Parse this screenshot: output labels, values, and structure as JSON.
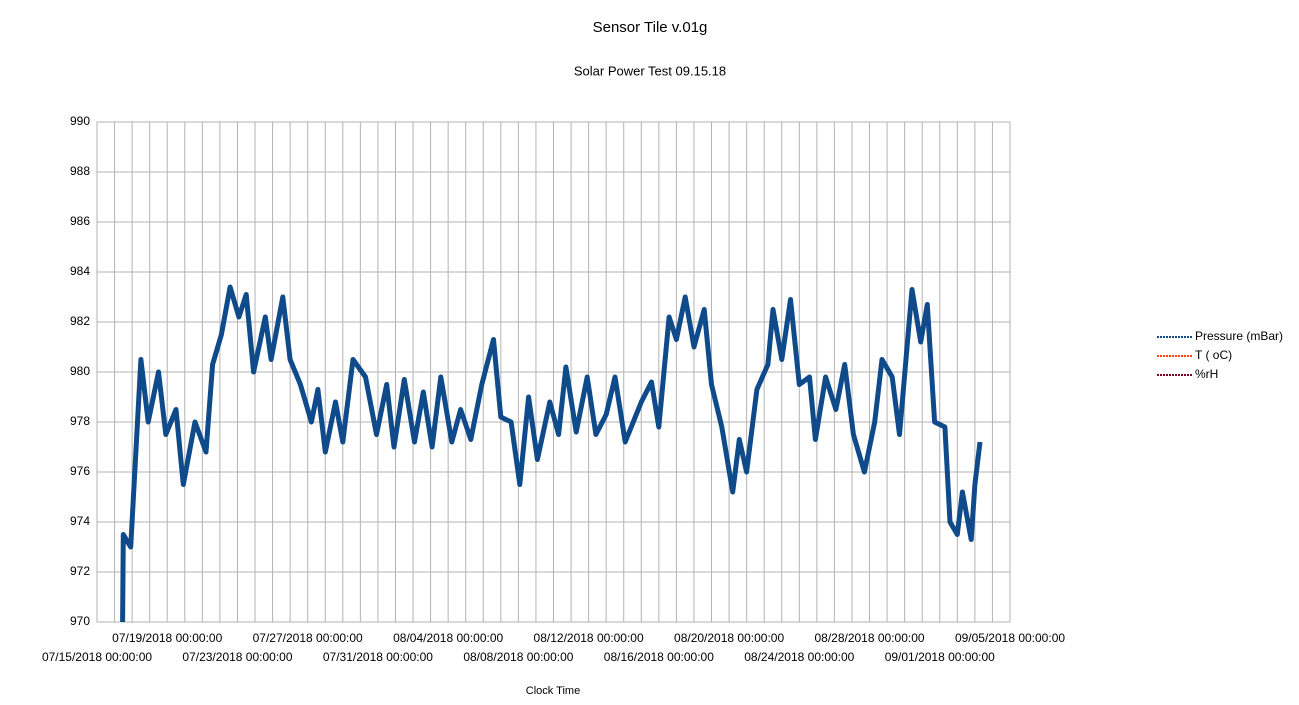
{
  "chart_data": {
    "type": "line",
    "title": "Sensor Tile v.01g",
    "subtitle": "Solar Power Test 09.15.18",
    "x_label": "Clock Time",
    "xlim": [
      "07/15/2018 00:00:00",
      "09/05/2018 00:00:00"
    ],
    "xticks": [
      "07/15/2018 00:00:00",
      "07/19/2018 00:00:00",
      "07/23/2018 00:00:00",
      "07/27/2018 00:00:00",
      "07/31/2018 00:00:00",
      "08/04/2018 00:00:00",
      "08/08/2018 00:00:00",
      "08/12/2018 00:00:00",
      "08/16/2018 00:00:00",
      "08/20/2018 00:00:00",
      "08/24/2018 00:00:00",
      "08/28/2018 00:00:00",
      "09/01/2018 00:00:00",
      "09/05/2018 00:00:00"
    ],
    "x_minor_per_major": 3,
    "ylim": [
      970,
      990
    ],
    "yticks": [
      970,
      972,
      974,
      976,
      978,
      980,
      982,
      984,
      986,
      988,
      990
    ],
    "grid": true,
    "legend": "right",
    "x": [
      "07/16/2018 11:00:00",
      "07/16/2018 12:00:00",
      "07/16/2018 22:00:00",
      "07/17/2018 12:00:00",
      "07/17/2018 22:00:00",
      "07/18/2018 12:00:00",
      "07/18/2018 22:00:00",
      "07/19/2018 12:00:00",
      "07/19/2018 22:00:00",
      "07/20/2018 14:00:00",
      "07/21/2018 05:00:00",
      "07/21/2018 14:00:00",
      "07/22/2018 02:00:00",
      "07/22/2018 14:00:00",
      "07/23/2018 02:00:00",
      "07/23/2018 12:00:00",
      "07/23/2018 22:00:00",
      "07/24/2018 14:00:00",
      "07/24/2018 22:00:00",
      "07/25/2018 14:00:00",
      "07/26/2018 00:00:00",
      "07/26/2018 14:00:00",
      "07/27/2018 05:00:00",
      "07/27/2018 14:00:00",
      "07/28/2018 00:00:00",
      "07/28/2018 14:00:00",
      "07/29/2018 00:00:00",
      "07/29/2018 14:00:00",
      "07/30/2018 07:00:00",
      "07/30/2018 22:00:00",
      "07/31/2018 12:00:00",
      "07/31/2018 22:00:00",
      "08/01/2018 12:00:00",
      "08/02/2018 02:00:00",
      "08/02/2018 14:00:00",
      "08/03/2018 02:00:00",
      "08/03/2018 14:00:00",
      "08/04/2018 05:00:00",
      "08/04/2018 17:00:00",
      "08/05/2018 07:00:00",
      "08/05/2018 22:00:00",
      "08/06/2018 14:00:00",
      "08/07/2018 00:00:00",
      "08/07/2018 14:00:00",
      "08/08/2018 02:00:00",
      "08/08/2018 14:00:00",
      "08/09/2018 02:00:00",
      "08/09/2018 19:00:00",
      "08/10/2018 07:00:00",
      "08/10/2018 17:00:00",
      "08/11/2018 07:00:00",
      "08/11/2018 22:00:00",
      "08/12/2018 10:00:00",
      "08/13/2018 00:00:00",
      "08/13/2018 12:00:00",
      "08/14/2018 02:00:00",
      "08/15/2018 00:00:00",
      "08/15/2018 14:00:00",
      "08/16/2018 00:00:00",
      "08/16/2018 14:00:00",
      "08/17/2018 00:00:00",
      "08/17/2018 12:00:00",
      "08/18/2018 00:00:00",
      "08/18/2018 14:00:00",
      "08/19/2018 00:00:00",
      "08/19/2018 14:00:00",
      "08/20/2018 05:00:00",
      "08/20/2018 14:00:00",
      "08/21/2018 00:00:00",
      "08/21/2018 14:00:00",
      "08/22/2018 05:00:00",
      "08/22/2018 12:00:00",
      "08/23/2018 00:00:00",
      "08/23/2018 12:00:00",
      "08/24/2018 00:00:00",
      "08/24/2018 14:00:00",
      "08/24/2018 22:00:00",
      "08/25/2018 12:00:00",
      "08/26/2018 02:00:00",
      "08/26/2018 14:00:00",
      "08/27/2018 02:00:00",
      "08/27/2018 17:00:00",
      "08/28/2018 07:00:00",
      "08/28/2018 17:00:00",
      "08/29/2018 07:00:00",
      "08/29/2018 17:00:00",
      "08/30/2018 10:00:00",
      "08/30/2018 22:00:00",
      "08/31/2018 07:00:00",
      "08/31/2018 17:00:00",
      "09/01/2018 07:00:00",
      "09/01/2018 14:00:00",
      "09/02/2018 00:00:00",
      "09/02/2018 07:00:00",
      "09/02/2018 19:00:00",
      "09/03/2018 00:00:00",
      "09/03/2018 07:00:00"
    ],
    "series": [
      {
        "name": "Pressure (mBar)",
        "color": "#0f4a8a",
        "values": [
          970,
          973.5,
          973,
          980.5,
          978,
          980,
          977.5,
          978.5,
          975.5,
          978,
          976.8,
          980.3,
          981.5,
          983.4,
          982.2,
          983.1,
          980,
          982.2,
          980.5,
          983,
          980.5,
          979.5,
          978,
          979.3,
          976.8,
          978.8,
          977.2,
          980.5,
          979.8,
          977.5,
          979.5,
          977,
          979.7,
          977.2,
          979.2,
          977,
          979.8,
          977.2,
          978.5,
          977.3,
          979.5,
          981.3,
          978.2,
          978,
          975.5,
          979,
          976.5,
          978.8,
          977.5,
          980.2,
          977.6,
          979.8,
          977.5,
          978.3,
          979.8,
          977.2,
          978.8,
          979.6,
          977.8,
          982.2,
          981.3,
          983,
          981,
          982.5,
          979.5,
          977.8,
          975.2,
          977.3,
          976,
          979.3,
          980.3,
          982.5,
          980.5,
          982.9,
          979.5,
          979.8,
          977.3,
          979.8,
          978.5,
          980.3,
          977.5,
          976,
          978,
          980.5,
          979.8,
          977.5,
          983.3,
          981.2,
          982.7,
          978,
          977.8,
          974,
          973.5,
          975.2,
          973.3,
          975.5,
          977.2
        ]
      },
      {
        "name": "T ( oC)",
        "color": "#ff420e"
      },
      {
        "name": "%rH",
        "color": "#7e0021"
      }
    ]
  }
}
